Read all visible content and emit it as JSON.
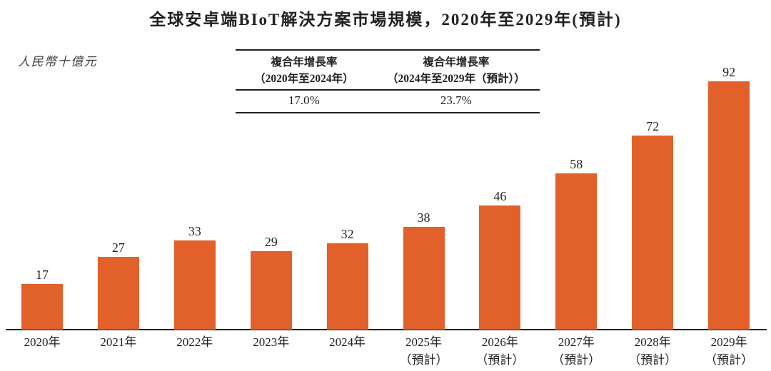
{
  "page": {
    "title": "全球安卓端BIoT解決方案市場規模，2020年至2029年(預計)",
    "unit_label": "人民幣十億元"
  },
  "cagr_table": {
    "columns": [
      {
        "header_line1": "複合年增長率",
        "header_line2": "（2020年至2024年）",
        "value": "17.0%"
      },
      {
        "header_line1": "複合年增長率",
        "header_line2": "（2024年至2029年（預計））",
        "value": "23.7%"
      }
    ]
  },
  "chart_data": {
    "type": "bar",
    "title": "全球安卓端BIoT解決方案市場規模，2020年至2029年(預計)",
    "ylabel": "人民幣十億元",
    "categories": [
      "2020年",
      "2021年",
      "2022年",
      "2023年",
      "2024年",
      "2025年",
      "2026年",
      "2027年",
      "2028年",
      "2029年"
    ],
    "category_notes": [
      "",
      "",
      "",
      "",
      "",
      "（預計）",
      "（預計）",
      "（預計）",
      "（預計）",
      "（預計）"
    ],
    "values": [
      17,
      27,
      33,
      29,
      32,
      38,
      46,
      58,
      72,
      92
    ],
    "bar_color": "#E2612A",
    "axis_color": "#231F20",
    "ylim": [
      0,
      100
    ],
    "grid": false,
    "legend": false,
    "annotations": [
      "複合年增長率（2020年至2024年）17.0%",
      "複合年增長率（2024年至2029年（預計））23.7%"
    ]
  }
}
